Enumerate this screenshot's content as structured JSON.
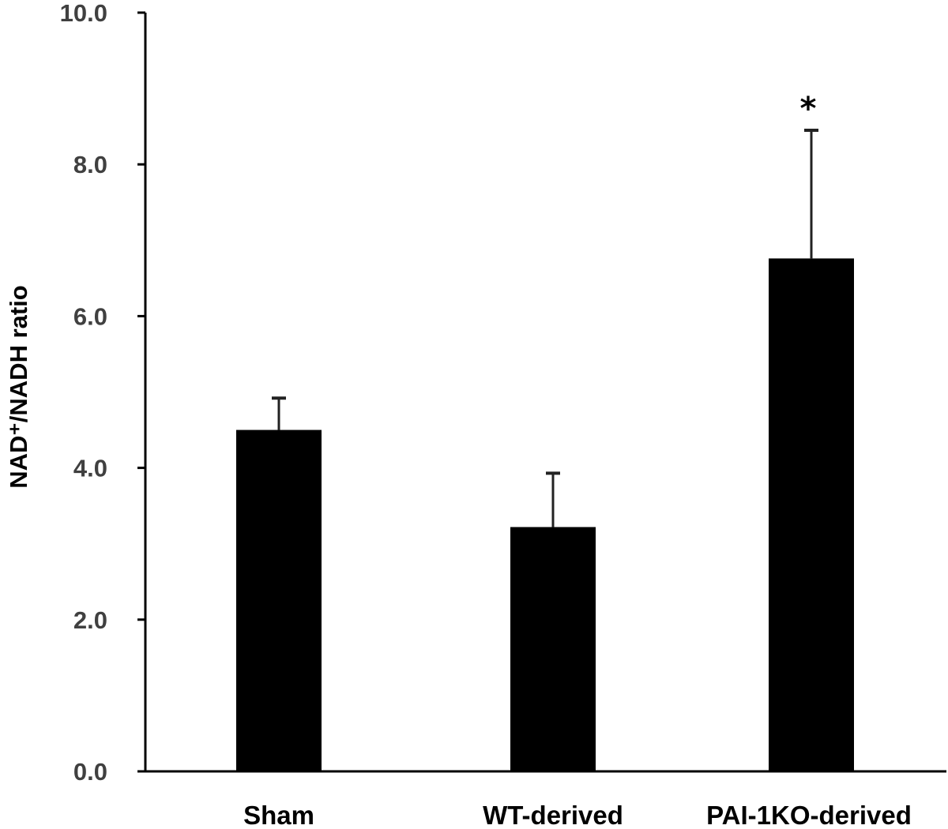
{
  "chart_data": {
    "type": "bar",
    "title": "",
    "xlabel": "",
    "ylabel": "NAD⁺/NADH ratio",
    "ylim": [
      0,
      10
    ],
    "yticks": [
      "0.0",
      "2.0",
      "4.0",
      "6.0",
      "8.0",
      "10.0"
    ],
    "ytick_values": [
      0,
      2,
      4,
      6,
      8,
      10
    ],
    "categories": [
      "Sham",
      "WT-derived",
      "PAI-1KO-derived"
    ],
    "values": [
      4.5,
      3.22,
      6.76
    ],
    "error_upper": [
      0.42,
      0.71,
      1.69
    ],
    "annotations": [
      "",
      "",
      "*"
    ],
    "bar_color": "#000000",
    "grid": false,
    "legend": "none"
  }
}
